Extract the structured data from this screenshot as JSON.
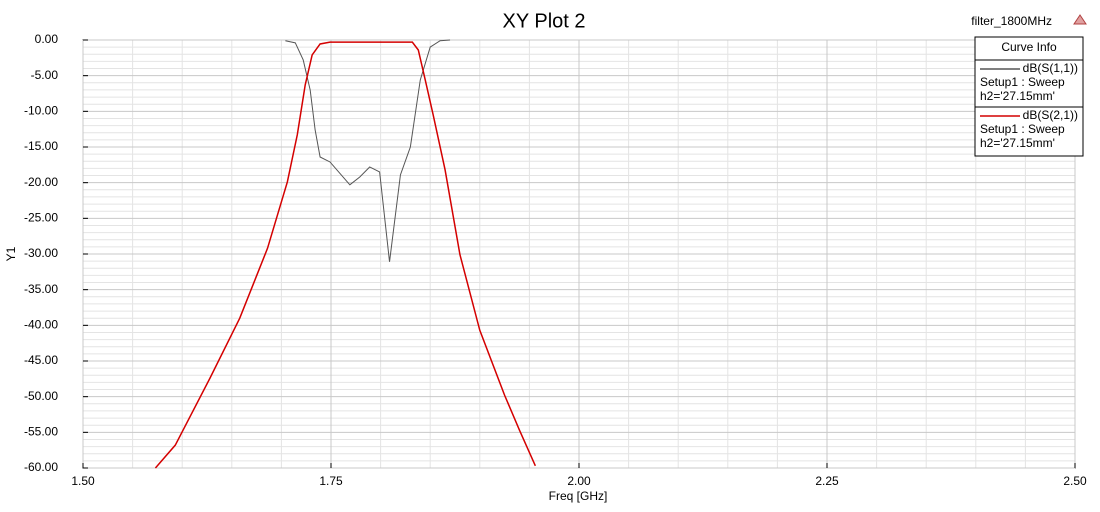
{
  "chart_data": {
    "type": "line",
    "title": "XY Plot 2",
    "design_name": "filter_1800MHz",
    "xlabel": "Freq [GHz]",
    "ylabel": "Y1",
    "legend_title": "Curve Info",
    "xlim": [
      1.5,
      2.5
    ],
    "ylim": [
      -60,
      0
    ],
    "xticks": [
      {
        "value": 1.5,
        "label": "1.50"
      },
      {
        "value": 1.75,
        "label": "1.75"
      },
      {
        "value": 2.0,
        "label": "2.00"
      },
      {
        "value": 2.25,
        "label": "2.25"
      },
      {
        "value": 2.5,
        "label": "2.50"
      }
    ],
    "yticks": [
      {
        "value": 0,
        "label": "0.00"
      },
      {
        "value": -5,
        "label": "-5.00"
      },
      {
        "value": -10,
        "label": "-10.00"
      },
      {
        "value": -15,
        "label": "-15.00"
      },
      {
        "value": -20,
        "label": "-20.00"
      },
      {
        "value": -25,
        "label": "-25.00"
      },
      {
        "value": -30,
        "label": "-30.00"
      },
      {
        "value": -35,
        "label": "-35.00"
      },
      {
        "value": -40,
        "label": "-40.00"
      },
      {
        "value": -45,
        "label": "-45.00"
      },
      {
        "value": -50,
        "label": "-50.00"
      },
      {
        "value": -55,
        "label": "-55.00"
      },
      {
        "value": -60,
        "label": "-60.00"
      }
    ],
    "grid": true,
    "minor_grid": true,
    "legend": "top-right",
    "series": [
      {
        "name": "dB(S(1,1))",
        "setup": "Setup1 : Sweep",
        "variation": "h2='27.15mm'",
        "color": "#555555",
        "x": [
          1.704,
          1.714,
          1.722,
          1.729,
          1.734,
          1.739,
          1.749,
          1.769,
          1.779,
          1.789,
          1.799,
          1.809,
          1.82,
          1.83,
          1.84,
          1.85,
          1.86,
          1.87
        ],
        "values": [
          -0.1,
          -0.4,
          -2.8,
          -7.0,
          -12.6,
          -16.4,
          -17.1,
          -20.3,
          -19.2,
          -17.8,
          -18.5,
          -31.1,
          -18.9,
          -15.0,
          -5.6,
          -1.0,
          -0.1,
          0
        ]
      },
      {
        "name": "dB(S(2,1))",
        "setup": "Setup1 : Sweep",
        "variation": "h2='27.15mm'",
        "color": "#d40000",
        "x": [
          1.573,
          1.593,
          1.628,
          1.658,
          1.686,
          1.706,
          1.716,
          1.724,
          1.731,
          1.739,
          1.749,
          1.79,
          1.832,
          1.838,
          1.845,
          1.853,
          1.865,
          1.88,
          1.9,
          1.925,
          1.94,
          1.956
        ],
        "values": [
          -60,
          -56.8,
          -47.4,
          -39.0,
          -29.2,
          -19.9,
          -13.3,
          -6.3,
          -2.1,
          -0.56,
          -0.3,
          -0.3,
          -0.3,
          -1.4,
          -5.6,
          -10.5,
          -18.2,
          -30.1,
          -40.7,
          -49.8,
          -54.7,
          -59.7
        ]
      }
    ]
  }
}
